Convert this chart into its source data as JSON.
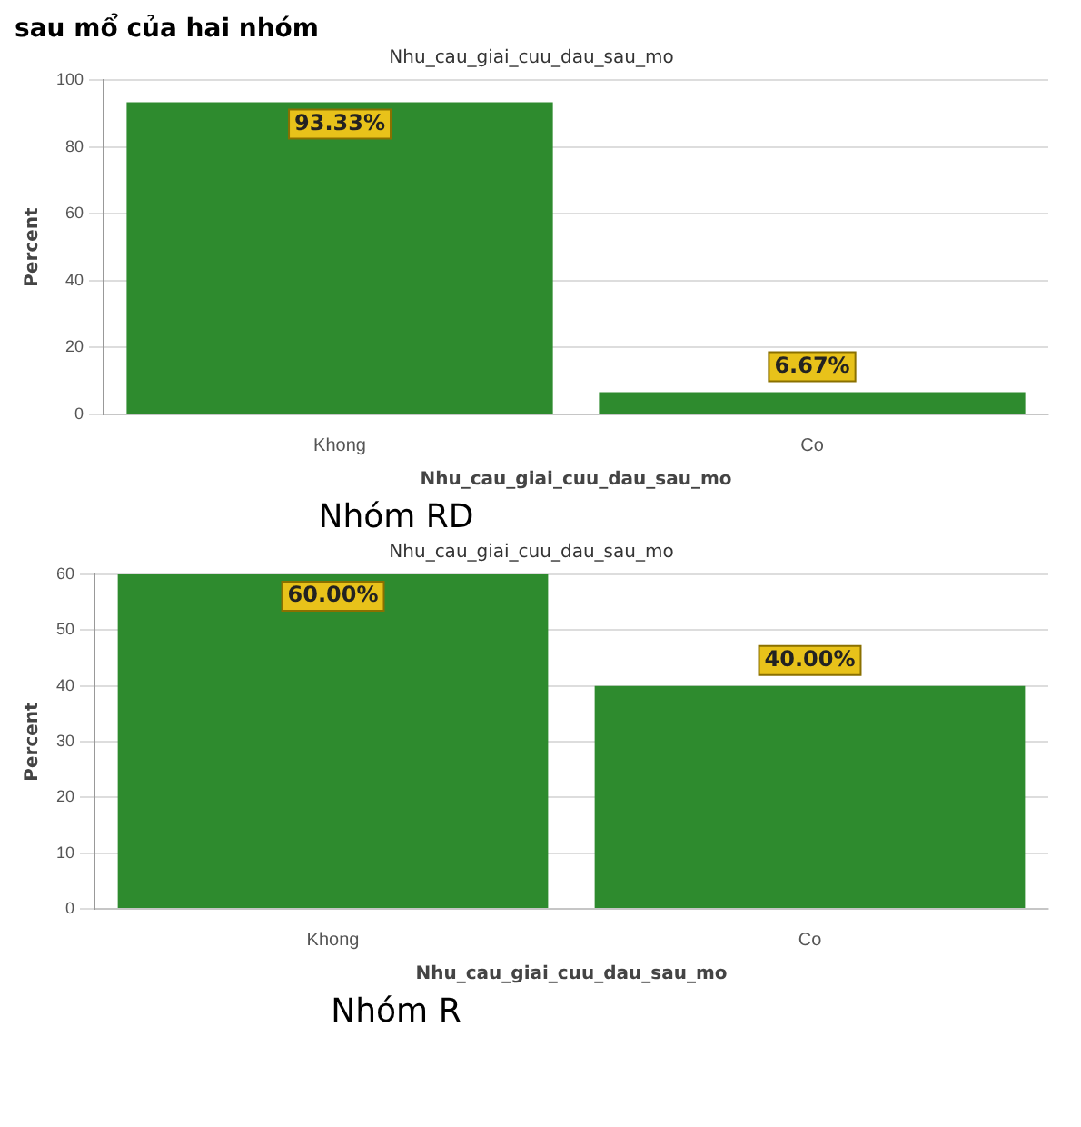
{
  "chart_data": [
    {
      "type": "bar",
      "title": "Nhu_cau_giai_cuu_dau_sau_mo",
      "xlabel": "Nhu_cau_giai_cuu_dau_sau_mo",
      "ylabel": "Percent",
      "categories": [
        "Khong",
        "Co"
      ],
      "values": [
        93.33,
        6.67
      ],
      "value_labels": [
        "93.33%",
        "6.67%"
      ],
      "color": "#2e8b2e",
      "ylim": [
        0,
        100
      ],
      "yticks": [
        0,
        20,
        40,
        60,
        80,
        100
      ],
      "grid": "y",
      "annotations": [
        "sau mổ của hai nhóm",
        "Nhóm RD"
      ]
    },
    {
      "type": "bar",
      "title": "Nhu_cau_giai_cuu_dau_sau_mo",
      "xlabel": "Nhu_cau_giai_cuu_dau_sau_mo",
      "ylabel": "Percent",
      "categories": [
        "Khong",
        "Co"
      ],
      "values": [
        60,
        40
      ],
      "value_labels": [
        "60.00%",
        "40.00%"
      ],
      "color": "#2e8b2e",
      "ylim": [
        0,
        60
      ],
      "yticks": [
        0,
        10,
        20,
        30,
        40,
        50,
        60
      ],
      "grid": "y",
      "annotations": [
        "Nhóm R"
      ]
    }
  ]
}
